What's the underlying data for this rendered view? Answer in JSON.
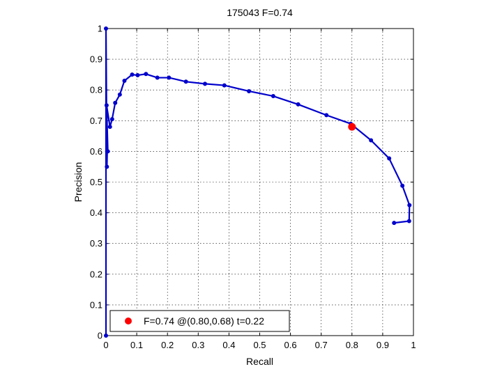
{
  "chart_data": {
    "type": "line",
    "title": "175043 F=0.74",
    "xlabel": "Recall",
    "ylabel": "Precision",
    "xlim": [
      0,
      1
    ],
    "ylim": [
      0,
      1
    ],
    "grid": true,
    "legend_position": "bottom-left",
    "x_ticks": [
      0,
      0.1,
      0.2,
      0.3,
      0.4,
      0.5,
      0.6,
      0.7,
      0.8,
      0.9,
      1
    ],
    "y_ticks": [
      0,
      0.1,
      0.2,
      0.3,
      0.4,
      0.5,
      0.6,
      0.7,
      0.8,
      0.9,
      1
    ],
    "x_tick_labels": [
      "0",
      "0.1",
      "0.2",
      "0.3",
      "0.4",
      "0.5",
      "0.6",
      "0.7",
      "0.8",
      "0.9",
      "1"
    ],
    "y_tick_labels": [
      "0",
      "0.1",
      "0.2",
      "0.3",
      "0.4",
      "0.5",
      "0.6",
      "0.7",
      "0.8",
      "0.9",
      "1"
    ],
    "series": [
      {
        "color": "#0000cc",
        "points": [
          [
            0.0,
            0.0
          ],
          [
            0.0,
            1.0
          ],
          [
            0.003,
            0.55
          ],
          [
            0.004,
            0.6
          ],
          [
            0.006,
            0.6
          ],
          [
            0.002,
            0.75
          ],
          [
            0.013,
            0.68
          ],
          [
            0.02,
            0.705
          ],
          [
            0.03,
            0.758
          ],
          [
            0.045,
            0.785
          ],
          [
            0.06,
            0.83
          ],
          [
            0.085,
            0.85
          ],
          [
            0.103,
            0.848
          ],
          [
            0.13,
            0.852
          ],
          [
            0.167,
            0.84
          ],
          [
            0.205,
            0.84
          ],
          [
            0.26,
            0.827
          ],
          [
            0.322,
            0.82
          ],
          [
            0.385,
            0.815
          ],
          [
            0.465,
            0.796
          ],
          [
            0.544,
            0.78
          ],
          [
            0.625,
            0.753
          ],
          [
            0.717,
            0.718
          ],
          [
            0.796,
            0.69
          ],
          [
            0.862,
            0.636
          ],
          [
            0.921,
            0.577
          ],
          [
            0.964,
            0.488
          ],
          [
            0.987,
            0.425
          ],
          [
            0.986,
            0.373
          ],
          [
            0.937,
            0.367
          ]
        ]
      }
    ],
    "best_point": {
      "x": 0.8,
      "y": 0.68,
      "color": "#ff0000",
      "label": "F=0.74 @(0.80,0.68) t=0.22"
    }
  }
}
